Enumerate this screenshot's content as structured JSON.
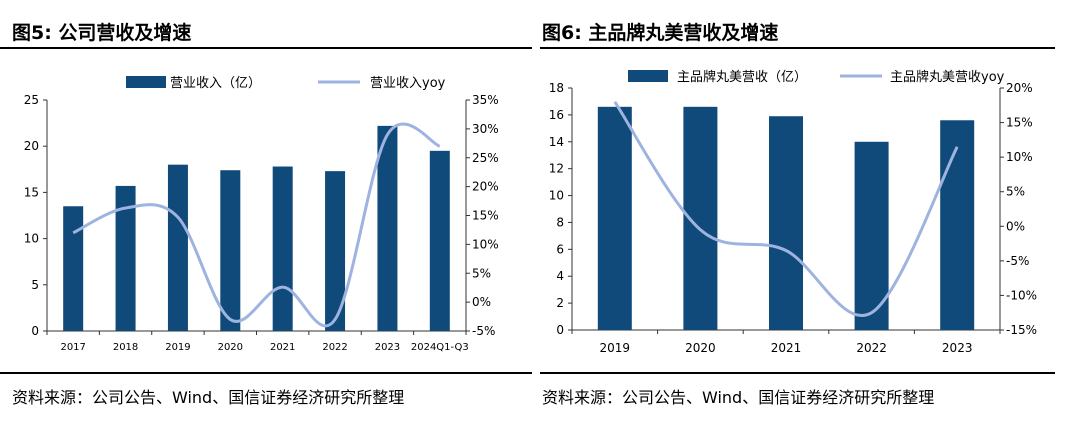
{
  "left": {
    "figure_title": "图5: 公司营收及增速",
    "source": "资料来源：公司公告、Wind、国信证券经济研究所整理"
  },
  "right": {
    "figure_title": "图6: 主品牌丸美营收及增速",
    "source": "资料来源：公司公告、Wind、国信证券经济研究所整理"
  },
  "colors": {
    "bar": "#0f4a7a",
    "line": "#9fb3e0"
  },
  "chart_data": [
    {
      "type": "bar",
      "combo_line": true,
      "categories": [
        "2017",
        "2018",
        "2019",
        "2020",
        "2021",
        "2022",
        "2023",
        "2024Q1-Q3"
      ],
      "series": [
        {
          "name": "营业收入（亿）",
          "type": "bar",
          "axis": "left",
          "values": [
            13.5,
            15.7,
            18.0,
            17.4,
            17.8,
            17.3,
            22.2,
            19.5
          ]
        },
        {
          "name": "营业收入yoy",
          "type": "line",
          "axis": "right",
          "values": [
            12.0,
            16.3,
            14.7,
            -3.0,
            2.6,
            -3.0,
            29.0,
            27.0
          ]
        }
      ],
      "y_left": {
        "min": 0,
        "max": 25,
        "ticks": [
          "0",
          "5",
          "10",
          "15",
          "20",
          "25"
        ],
        "tick_values": [
          0,
          5,
          10,
          15,
          20,
          25
        ]
      },
      "y_right": {
        "min": -5,
        "max": 35,
        "ticks": [
          "-5%",
          "0%",
          "5%",
          "10%",
          "15%",
          "20%",
          "25%",
          "30%",
          "35%"
        ],
        "tick_values": [
          -5,
          0,
          5,
          10,
          15,
          20,
          25,
          30,
          35
        ]
      },
      "legend": "top",
      "grid": false
    },
    {
      "type": "bar",
      "combo_line": true,
      "categories": [
        "2019",
        "2020",
        "2021",
        "2022",
        "2023"
      ],
      "series": [
        {
          "name": "主品牌丸美营收（亿）",
          "type": "bar",
          "axis": "left",
          "values": [
            16.6,
            16.6,
            15.9,
            14.0,
            15.6
          ]
        },
        {
          "name": "主品牌丸美营收yoy",
          "type": "line",
          "axis": "right",
          "values": [
            18.0,
            -0.5,
            -3.5,
            -12.5,
            11.5
          ]
        }
      ],
      "y_left": {
        "min": 0,
        "max": 18,
        "ticks": [
          "0",
          "2",
          "4",
          "6",
          "8",
          "10",
          "12",
          "14",
          "16",
          "18"
        ],
        "tick_values": [
          0,
          2,
          4,
          6,
          8,
          10,
          12,
          14,
          16,
          18
        ]
      },
      "y_right": {
        "min": -15,
        "max": 20,
        "ticks": [
          "-15%",
          "-10%",
          "-5%",
          "0%",
          "5%",
          "10%",
          "15%",
          "20%"
        ],
        "tick_values": [
          -15,
          -10,
          -5,
          0,
          5,
          10,
          15,
          20
        ]
      },
      "legend": "top",
      "grid": false
    }
  ]
}
